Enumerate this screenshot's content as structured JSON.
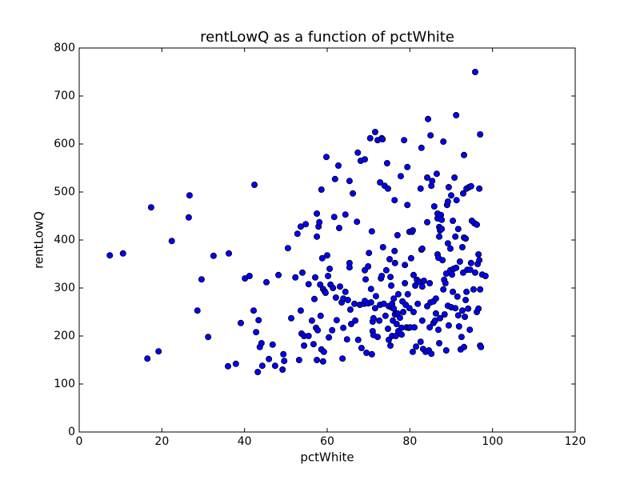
{
  "chart_data": {
    "type": "scatter",
    "title": "rentLowQ as a function of pctWhite",
    "x_label": "pctWhite",
    "y_label": "rentLowQ",
    "xlim": [
      0,
      120
    ],
    "xticks": [
      0,
      20,
      40,
      60,
      80,
      100,
      120
    ],
    "ylim": [
      0,
      800
    ],
    "yticks": [
      0,
      100,
      200,
      300,
      400,
      500,
      600,
      700,
      800
    ],
    "grid": false,
    "color": "#0000ff",
    "x": [
      7.4,
      10.6,
      17.4,
      16.5,
      19.2,
      22.4,
      26.5,
      26.7,
      28.6,
      29.6,
      31.2,
      32.5,
      36.0,
      36.2,
      37.9,
      39.1,
      40.1,
      41.2,
      42.4,
      42.2,
      42.8,
      43.2,
      43.4,
      43.7,
      44.1,
      44.3,
      45.3,
      45.9,
      46.8,
      47.4,
      48.2,
      49.2,
      49.4,
      49.6,
      50.5,
      51.3,
      52.3,
      52.8,
      53.2,
      53.6,
      53.6,
      54.0,
      53.8,
      54.4,
      54.8,
      54.4,
      55.5,
      55.5,
      56.3,
      56.7,
      56.9,
      57.1,
      57.3,
      57.5,
      57.5,
      57.5,
      57.9,
      58.1,
      57.7,
      58.3,
      58.4,
      58.6,
      58.6,
      58.8,
      59.0,
      59.0,
      59.2,
      59.4,
      59.6,
      59.8,
      60.0,
      60.2,
      60.4,
      60.6,
      60.8,
      61.2,
      61.4,
      61.7,
      61.9,
      62.1,
      62.3,
      62.7,
      62.9,
      63.1,
      63.5,
      63.7,
      63.9,
      63.9,
      64.4,
      64.4,
      64.8,
      65.0,
      65.4,
      65.4,
      65.4,
      65.6,
      65.8,
      66.2,
      66.6,
      66.8,
      67.2,
      67.4,
      67.5,
      67.9,
      68.1,
      68.3,
      68.9,
      69.1,
      69.1,
      69.1,
      69.3,
      69.5,
      69.9,
      69.9,
      70.1,
      70.4,
      70.6,
      70.6,
      70.8,
      70.8,
      71.0,
      71.0,
      71.2,
      71.2,
      71.6,
      71.6,
      71.8,
      72.2,
      72.2,
      72.6,
      72.8,
      72.8,
      73.0,
      73.2,
      73.2,
      73.4,
      73.5,
      73.7,
      73.9,
      74.1,
      74.3,
      74.5,
      74.7,
      74.7,
      74.9,
      74.9,
      75.1,
      75.3,
      75.3,
      75.5,
      75.5,
      75.7,
      75.7,
      75.9,
      76.1,
      76.1,
      76.3,
      76.3,
      76.4,
      76.4,
      76.6,
      76.8,
      77.0,
      77.0,
      77.2,
      77.2,
      77.6,
      77.8,
      78.0,
      78.0,
      78.2,
      78.4,
      78.6,
      78.8,
      78.8,
      79.0,
      79.2,
      79.4,
      79.4,
      79.5,
      79.7,
      79.9,
      79.9,
      80.1,
      80.3,
      80.5,
      80.7,
      80.7,
      80.9,
      80.9,
      81.1,
      81.3,
      81.5,
      81.7,
      81.9,
      82.3,
      82.6,
      82.6,
      82.8,
      82.8,
      83.0,
      83.0,
      83.0,
      83.2,
      83.4,
      83.8,
      84.2,
      84.2,
      84.2,
      84.4,
      84.6,
      84.8,
      84.8,
      85.0,
      85.0,
      85.2,
      85.2,
      85.4,
      85.7,
      85.7,
      85.9,
      86.1,
      86.3,
      86.3,
      86.5,
      86.7,
      86.7,
      86.7,
      86.9,
      86.9,
      87.1,
      87.1,
      87.1,
      87.3,
      87.3,
      87.5,
      87.7,
      87.7,
      87.9,
      88.1,
      88.1,
      88.3,
      88.4,
      88.6,
      88.8,
      88.8,
      89.0,
      89.2,
      89.2,
      89.2,
      89.4,
      89.4,
      89.8,
      89.8,
      90.0,
      90.0,
      90.2,
      90.4,
      90.4,
      90.6,
      90.8,
      91.0,
      91.0,
      91.2,
      91.2,
      91.3,
      91.5,
      91.7,
      91.7,
      91.9,
      92.1,
      92.3,
      92.5,
      92.7,
      92.7,
      92.9,
      92.9,
      93.1,
      93.1,
      93.1,
      93.3,
      93.5,
      93.5,
      93.7,
      93.7,
      93.9,
      94.1,
      94.3,
      94.5,
      94.6,
      94.8,
      94.8,
      95.0,
      95.4,
      95.6,
      95.8,
      95.8,
      96.2,
      96.2,
      96.4,
      96.6,
      96.6,
      96.8,
      96.8,
      97.0,
      97.0,
      97.0,
      97.2,
      97.5,
      98.3
    ],
    "values": [
      368,
      372,
      468,
      153,
      168,
      398,
      447,
      493,
      253,
      318,
      198,
      367,
      137,
      372,
      142,
      227,
      320,
      325,
      515,
      253,
      208,
      125,
      233,
      177,
      185,
      138,
      312,
      152,
      182,
      138,
      327,
      130,
      162,
      148,
      383,
      237,
      322,
      413,
      150,
      428,
      253,
      332,
      205,
      180,
      433,
      200,
      200,
      308,
      232,
      183,
      277,
      322,
      217,
      407,
      150,
      455,
      428,
      437,
      212,
      307,
      242,
      505,
      172,
      362,
      298,
      147,
      167,
      293,
      290,
      573,
      368,
      325,
      197,
      340,
      307,
      212,
      300,
      448,
      527,
      280,
      233,
      555,
      425,
      303,
      270,
      153,
      278,
      217,
      453,
      292,
      193,
      275,
      352,
      343,
      523,
      255,
      225,
      497,
      267,
      232,
      438,
      582,
      192,
      265,
      565,
      175,
      267,
      337,
      568,
      273,
      318,
      165,
      268,
      345,
      373,
      612,
      270,
      298,
      418,
      162,
      210,
      230,
      202,
      237,
      625,
      258,
      283,
      198,
      608,
      232,
      520,
      265,
      320,
      325,
      612,
      610,
      385,
      267,
      513,
      242,
      337,
      560,
      507,
      215,
      262,
      192,
      360,
      180,
      323,
      260,
      305,
      267,
      200,
      232,
      257,
      278,
      483,
      377,
      245,
      352,
      200,
      225,
      247,
      410,
      287,
      210,
      238,
      533,
      203,
      217,
      272,
      250,
      608,
      310,
      348,
      265,
      218,
      473,
      552,
      287,
      217,
      417,
      258,
      218,
      362,
      417,
      167,
      420,
      250,
      327,
      218,
      305,
      178,
      317,
      267,
      313,
      188,
      507,
      380,
      592,
      232,
      382,
      303,
      173,
      315,
      167,
      262,
      437,
      530,
      652,
      170,
      218,
      310,
      270,
      618,
      163,
      513,
      523,
      227,
      272,
      470,
      232,
      247,
      278,
      538,
      445,
      455,
      370,
      363,
      213,
      185,
      407,
      427,
      420,
      237,
      452,
      442,
      423,
      358,
      605,
      297,
      317,
      245,
      310,
      170,
      330,
      473,
      263,
      393,
      480,
      510,
      222,
      337,
      382,
      493,
      260,
      328,
      292,
      440,
      340,
      530,
      407,
      258,
      660,
      342,
      483,
      282,
      243,
      423,
      220,
      355,
      172,
      198,
      385,
      253,
      497,
      332,
      177,
      577,
      405,
      240,
      403,
      275,
      292,
      507,
      338,
      257,
      510,
      213,
      338,
      352,
      512,
      440,
      297,
      435,
      750,
      332,
      250,
      432,
      350,
      257,
      370,
      507,
      358,
      620,
      297,
      180,
      177,
      328,
      325
    ]
  }
}
